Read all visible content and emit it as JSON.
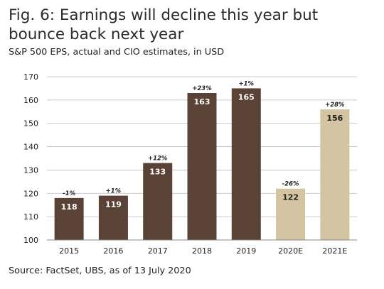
{
  "title": "Fig. 6: Earnings will decline this year but bounce back next year",
  "subtitle": "S&P 500 EPS, actual and CIO estimates, in USD",
  "source": "Source: FactSet, UBS, as of 13 July 2020",
  "colors": {
    "actual": "#5b4236",
    "estimate": "#d3c4a2",
    "gridline": "#bbbbbb",
    "axis": "#888888"
  },
  "chart_data": {
    "type": "bar",
    "title": "Fig. 6: Earnings will decline this year but bounce back next year",
    "subtitle": "S&P 500 EPS, actual and CIO estimates, in USD",
    "categories": [
      "2015",
      "2016",
      "2017",
      "2018",
      "2019",
      "2020E",
      "2021E"
    ],
    "values": [
      118,
      119,
      133,
      163,
      165,
      122,
      156
    ],
    "value_labels": [
      "118",
      "119",
      "133",
      "163",
      "165",
      "122",
      "156"
    ],
    "change_labels": [
      "-1%",
      "+1%",
      "+12%",
      "+23%",
      "+1%",
      "-26%",
      "+28%"
    ],
    "kind": [
      "actual",
      "actual",
      "actual",
      "actual",
      "actual",
      "estimate",
      "estimate"
    ],
    "ylim": [
      100,
      170
    ],
    "yticks": [
      "100",
      "110",
      "120",
      "130",
      "140",
      "150",
      "160",
      "170"
    ],
    "xlabel": "",
    "ylabel": "",
    "grid": true
  }
}
